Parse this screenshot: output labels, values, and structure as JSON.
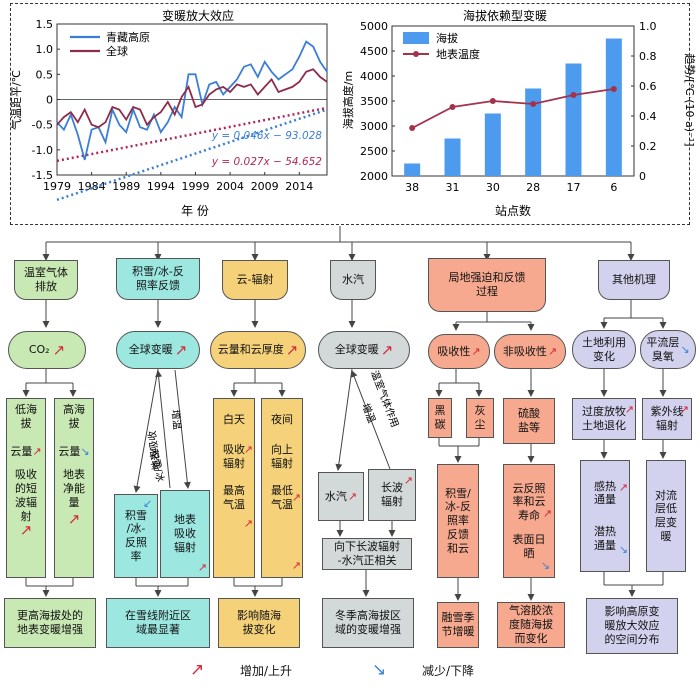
{
  "chart_data": [
    {
      "type": "line",
      "title": "变暖放大效应",
      "xlabel": "年 份",
      "ylabel": "气温距平/℃",
      "xlim": [
        1979,
        2018
      ],
      "ylim": [
        -1.5,
        1.5
      ],
      "xticks": [
        "1979",
        "1984",
        "1989",
        "1994",
        "1999",
        "2004",
        "2009",
        "2014"
      ],
      "yticks": [
        "-1.5",
        "-1.0",
        "-0.5",
        "0",
        "0.5",
        "1.0",
        "1.5"
      ],
      "legend_position": "top-left",
      "x": [
        1979,
        1980,
        1981,
        1982,
        1983,
        1984,
        1985,
        1986,
        1987,
        1988,
        1989,
        1990,
        1991,
        1992,
        1993,
        1994,
        1995,
        1996,
        1997,
        1998,
        1999,
        2000,
        2001,
        2002,
        2003,
        2004,
        2005,
        2006,
        2007,
        2008,
        2009,
        2010,
        2011,
        2012,
        2013,
        2014,
        2015,
        2016,
        2017,
        2018
      ],
      "series": [
        {
          "name": "青藏高原",
          "color": "#3a7fd5",
          "values": [
            -0.45,
            -0.6,
            -0.3,
            -0.7,
            -1.2,
            -0.6,
            -0.55,
            -0.85,
            -0.2,
            -0.5,
            -0.65,
            -0.2,
            -0.55,
            -0.6,
            -0.3,
            -0.65,
            -0.45,
            -0.15,
            -0.35,
            0.5,
            0.5,
            -0.1,
            0.3,
            0.35,
            0.1,
            0.25,
            0.4,
            0.65,
            0.7,
            0.45,
            0.75,
            0.55,
            0.4,
            0.5,
            0.6,
            0.85,
            1.15,
            1.05,
            0.75,
            0.55
          ]
        },
        {
          "name": "全球",
          "color": "#8e2c4b",
          "values": [
            -0.5,
            -0.35,
            -0.25,
            -0.45,
            -0.2,
            -0.5,
            -0.55,
            -0.45,
            -0.15,
            -0.2,
            -0.4,
            -0.15,
            -0.2,
            -0.5,
            -0.35,
            -0.25,
            -0.05,
            -0.3,
            0.05,
            0.25,
            -0.15,
            -0.1,
            0.1,
            0.2,
            0.25,
            0.15,
            0.3,
            0.25,
            0.3,
            0.1,
            0.25,
            0.4,
            0.15,
            0.2,
            0.25,
            0.35,
            0.55,
            0.6,
            0.45,
            0.35
          ]
        }
      ],
      "trendlines": [
        {
          "equation": "y = 0.046x − 93.028",
          "slope": 0.046,
          "intercept": -93.028,
          "color": "#3a7fd5"
        },
        {
          "equation": "y = 0.027x − 54.652",
          "slope": 0.027,
          "intercept": -54.652,
          "color": "#b0275a"
        }
      ]
    },
    {
      "type": "bar",
      "title": "海拔依赖型变暖",
      "xlabel": "站点数",
      "ylabel": "海拔高度/m",
      "y2label": "趋势/[℃·(10 a)⁻¹]",
      "categories": [
        "38",
        "31",
        "30",
        "28",
        "17",
        "6"
      ],
      "ylim": [
        2000,
        5000
      ],
      "yticks": [
        "2000",
        "2500",
        "3000",
        "3500",
        "4000",
        "4500",
        "5000"
      ],
      "y2lim": [
        0,
        1.0
      ],
      "y2ticks": [
        "0",
        "0.2",
        "0.4",
        "0.6",
        "0.8",
        "1.0"
      ],
      "legend_position": "top-left",
      "series": [
        {
          "name": "海拔",
          "type": "bar",
          "axis": "left",
          "color": "#4d9bef",
          "values": [
            2250,
            2750,
            3250,
            3750,
            4250,
            4750
          ]
        },
        {
          "name": "地表温度",
          "type": "line",
          "axis": "right",
          "color": "#a3334d",
          "values": [
            0.32,
            0.46,
            0.5,
            0.48,
            0.54,
            0.58
          ]
        }
      ]
    }
  ],
  "columns": [
    {
      "title": "温室气体\n排放"
    },
    {
      "title": "积雪/冰-反\n照率反馈"
    },
    {
      "title": "云-辐射"
    },
    {
      "title": "水汽"
    },
    {
      "title": "局地强迫和反馈\n过程"
    },
    {
      "title": "其他机理"
    }
  ],
  "col1": {
    "pill": "CO₂",
    "left": "低海\n拔",
    "right": "高海\n拔",
    "left_items": [
      "云量",
      "吸收\n的短\n波辐\n射"
    ],
    "right_items": [
      "云量",
      "地表\n净能\n量"
    ],
    "summary": "更高海拔处的\n地表变暖增强"
  },
  "col2": {
    "pill": "全球变暖",
    "arrow_left": "积雪/冰",
    "arrow_right": "增温",
    "arrow_back": "地表吸收",
    "left_box": "积雪\n/冰-\n反照\n率",
    "right_box": "地表\n吸收\n辐射",
    "summary": "在雪线附近区\n域最显著"
  },
  "col3": {
    "pill": "云量和云厚度",
    "left": "白天",
    "right": "夜间",
    "left_items": [
      "吸收\n辐射",
      "最高\n气温"
    ],
    "right_items": [
      "向上\n辐射",
      "最低\n气温"
    ],
    "summary": "影响随海\n拔变化"
  },
  "col4": {
    "pill": "全球变暖",
    "arrow_left": "温室气体作用",
    "arrow_right": "增温",
    "left_box": "水汽",
    "right_box": "长波\n辐射",
    "mid": "向下长波辐射\n-水汽正相关",
    "summary": "冬季高海拔区\n域的变暖增强"
  },
  "col5": {
    "pill_left": "吸收性",
    "pill_right": "非吸收性",
    "box_black": "黑\n碳",
    "box_dust": "灰\n尘",
    "box_sulfate": "硫酸\n盐等",
    "left_mid": "积雪/\n冰-反\n照率\n反馈\n和云",
    "right_mid": "云反照\n率和云\n寿命",
    "right_mid2": "表面日\n晒",
    "left_sum": "融雪季\n节增暖",
    "right_sum": "气溶胶浓\n度随海拔\n而变化"
  },
  "col6": {
    "pill_left": "土地利用\n变化",
    "pill_right": "平流层\n臭氧",
    "left_mid": "过度放牧\n土地退化",
    "right_mid": "紫外线\n辐射",
    "left_items": [
      "感热\n通量",
      "潜热\n通量"
    ],
    "right_box": "对流\n层低\n层变\n暖",
    "summary": "影响高原变\n暖放大效应\n的空间分布"
  },
  "legend": {
    "up": "增加/上升",
    "down": "减少/下降"
  },
  "colors": {
    "up": "#d42a3a",
    "down": "#3a84d6"
  }
}
